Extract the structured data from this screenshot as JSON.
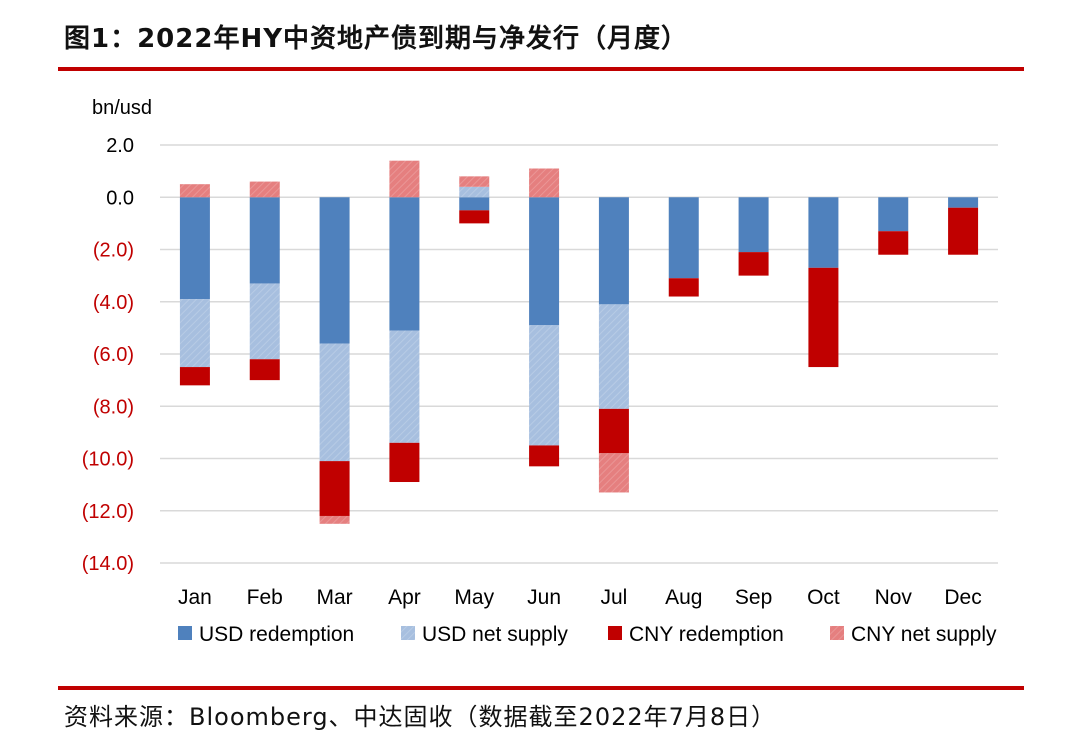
{
  "header": {
    "title": "图1：2022年HY中资地产债到期与净发行（月度）"
  },
  "footer": {
    "source": "资料来源：Bloomberg、中达固收（数据截至2022年7月8日）"
  },
  "colors": {
    "usd_redemption": "#4f81bd",
    "usd_net_supply": "#a7bfdf",
    "cny_redemption": "#c00000",
    "cny_net_supply": "#e57f7f",
    "negative_tick": "#c00000",
    "rule": "#c00000"
  },
  "chart_data": {
    "type": "bar",
    "stacked": true,
    "ylabel": "bn/usd",
    "ylim": [
      -14,
      2
    ],
    "yticks": [
      2,
      0,
      -2,
      -4,
      -6,
      -8,
      -10,
      -12,
      -14
    ],
    "ytick_labels": [
      "2.0",
      "0.0",
      "(2.0)",
      "(4.0)",
      "(6.0)",
      "(8.0)",
      "(10.0)",
      "(12.0)",
      "(14.0)"
    ],
    "grid": true,
    "legend_position": "bottom",
    "categories": [
      "Jan",
      "Feb",
      "Mar",
      "Apr",
      "May",
      "Jun",
      "Jul",
      "Aug",
      "Sep",
      "Oct",
      "Nov",
      "Dec"
    ],
    "series": [
      {
        "name": "USD redemption",
        "color": "usd_redemption",
        "values": [
          -3.9,
          -3.3,
          -5.6,
          -5.1,
          -0.5,
          -4.9,
          -4.1,
          -3.1,
          -2.1,
          -2.7,
          -1.3,
          -0.4
        ]
      },
      {
        "name": "USD net supply",
        "color": "usd_net_supply",
        "values": [
          -2.6,
          -2.9,
          -4.5,
          -4.3,
          0.4,
          -4.6,
          -4.0,
          0,
          0,
          0,
          0,
          0
        ]
      },
      {
        "name": "CNY redemption",
        "color": "cny_redemption",
        "values": [
          -0.7,
          -0.8,
          -2.1,
          -1.5,
          -0.5,
          -0.8,
          -1.7,
          -0.7,
          -0.9,
          -3.8,
          -0.9,
          -1.8
        ]
      },
      {
        "name": "CNY net supply",
        "color": "cny_net_supply",
        "values": [
          0.5,
          0.6,
          -0.3,
          1.4,
          0.4,
          1.1,
          -1.5,
          0,
          0,
          0,
          0,
          0
        ]
      }
    ]
  }
}
